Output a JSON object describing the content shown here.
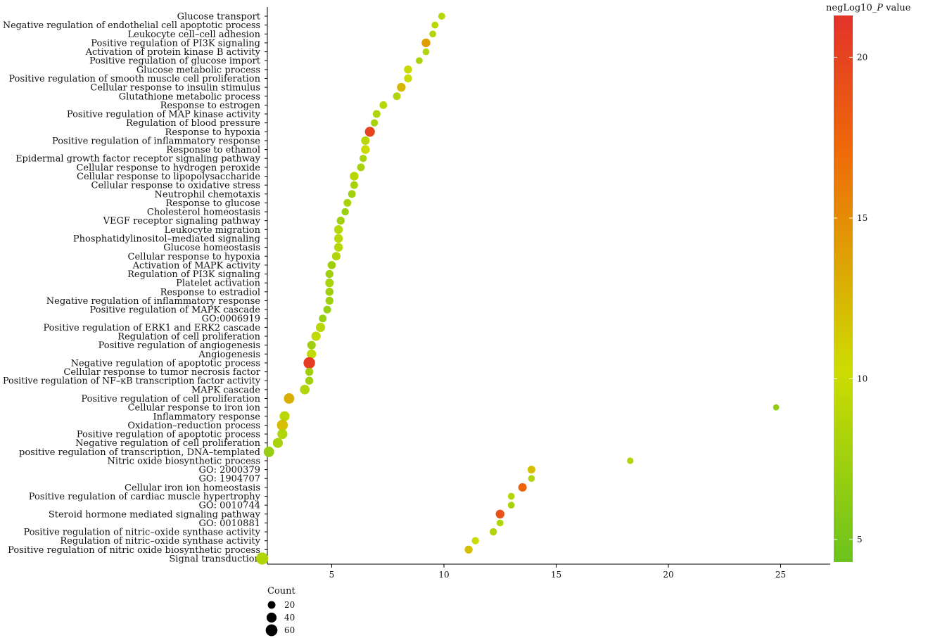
{
  "chart_data": {
    "type": "scatter",
    "title": "",
    "xlabel": "",
    "ylabel": "",
    "xlim": [
      1.9,
      26
    ],
    "xticks": [
      5,
      10,
      15,
      20,
      25
    ],
    "grid": false,
    "color_legend": {
      "title_prefix": "negLog10_",
      "title_italic": "P",
      "title_suffix": " value",
      "range": [
        4.3,
        21.3
      ],
      "ticks": [
        5,
        10,
        15,
        20
      ],
      "colors": [
        "#6cc31d",
        "#cddc00",
        "#ef6a08",
        "#e2332a"
      ]
    },
    "size_legend": {
      "title": "Count",
      "range": [
        0,
        70
      ],
      "values": [
        20,
        40,
        60
      ]
    },
    "points": [
      {
        "term": "Glucose transport",
        "x": 9.9,
        "count": 15,
        "p": 9.0
      },
      {
        "term": "Negative regulation of endothelial cell apoptotic process",
        "x": 9.6,
        "count": 15,
        "p": 9.0
      },
      {
        "term": "Leukocyte cell–cell adhesion",
        "x": 9.5,
        "count": 14,
        "p": 8.5
      },
      {
        "term": "Positive regulation of PI3K signaling",
        "x": 9.2,
        "count": 28,
        "p": 14.0
      },
      {
        "term": "Activation of protein kinase B activity",
        "x": 9.2,
        "count": 14,
        "p": 8.5
      },
      {
        "term": "Positive regulation of glucose import",
        "x": 8.9,
        "count": 14,
        "p": 8.0
      },
      {
        "term": "Glucose metabolic process",
        "x": 8.4,
        "count": 23,
        "p": 10.0
      },
      {
        "term": "Positive regulation of smooth muscle cell proliferation",
        "x": 8.4,
        "count": 22,
        "p": 10.0
      },
      {
        "term": "Cellular response to insulin stimulus",
        "x": 8.1,
        "count": 28,
        "p": 12.5
      },
      {
        "term": "Glutathione metabolic process",
        "x": 7.9,
        "count": 20,
        "p": 8.5
      },
      {
        "term": "Response to estrogen",
        "x": 7.3,
        "count": 20,
        "p": 9.0
      },
      {
        "term": "Positive regulation of MAP kinase activity",
        "x": 7.0,
        "count": 20,
        "p": 8.5
      },
      {
        "term": "Regulation of blood pressure",
        "x": 6.9,
        "count": 17,
        "p": 8.0
      },
      {
        "term": "Response to hypoxia",
        "x": 6.7,
        "count": 40,
        "p": 20.0
      },
      {
        "term": "Positive regulation of inflammatory response",
        "x": 6.5,
        "count": 26,
        "p": 9.0
      },
      {
        "term": "Response to ethanol",
        "x": 6.5,
        "count": 28,
        "p": 10.0
      },
      {
        "term": "Epidermal growth factor receptor signaling pathway",
        "x": 6.4,
        "count": 17,
        "p": 8.0
      },
      {
        "term": "Cellular response to hydrogen peroxide",
        "x": 6.3,
        "count": 20,
        "p": 8.0
      },
      {
        "term": "Cellular response to lipopolysaccharide",
        "x": 6.0,
        "count": 28,
        "p": 9.0
      },
      {
        "term": "Cellular response to oxidative stress",
        "x": 6.0,
        "count": 20,
        "p": 8.0
      },
      {
        "term": "Neutrophil chemotaxis",
        "x": 5.9,
        "count": 20,
        "p": 7.5
      },
      {
        "term": "Response to glucose",
        "x": 5.7,
        "count": 20,
        "p": 8.0
      },
      {
        "term": "Cholesterol homeostasis",
        "x": 5.6,
        "count": 17,
        "p": 7.0
      },
      {
        "term": "VEGF receptor signaling pathway",
        "x": 5.4,
        "count": 22,
        "p": 7.5
      },
      {
        "term": "Leukocyte migration",
        "x": 5.3,
        "count": 28,
        "p": 9.0
      },
      {
        "term": "Phosphatidylinositol–mediated signaling",
        "x": 5.3,
        "count": 28,
        "p": 9.0
      },
      {
        "term": "Glucose homeostasis",
        "x": 5.3,
        "count": 28,
        "p": 9.0
      },
      {
        "term": "Cellular response to hypoxia",
        "x": 5.2,
        "count": 26,
        "p": 8.5
      },
      {
        "term": "Activation of MAPK activity",
        "x": 5.0,
        "count": 23,
        "p": 7.5
      },
      {
        "term": "Regulation of PI3K signaling",
        "x": 4.9,
        "count": 22,
        "p": 7.5
      },
      {
        "term": "Platelet activation",
        "x": 4.9,
        "count": 26,
        "p": 8.0
      },
      {
        "term": "Response to estradiol",
        "x": 4.9,
        "count": 23,
        "p": 7.5
      },
      {
        "term": "Negative regulation of inflammatory response",
        "x": 4.9,
        "count": 22,
        "p": 7.5
      },
      {
        "term": "Positive regulation of MAPK cascade",
        "x": 4.8,
        "count": 20,
        "p": 7.0
      },
      {
        "term": "GO:0006919",
        "x": 4.6,
        "count": 20,
        "p": 7.0
      },
      {
        "term": "Positive regulation of ERK1 and ERK2 cascade",
        "x": 4.5,
        "count": 33,
        "p": 9.0
      },
      {
        "term": "Regulation of cell proliferation",
        "x": 4.3,
        "count": 33,
        "p": 9.5
      },
      {
        "term": "Positive regulation of angiogenesis",
        "x": 4.1,
        "count": 26,
        "p": 7.5
      },
      {
        "term": "Angiogenesis",
        "x": 4.1,
        "count": 33,
        "p": 9.5
      },
      {
        "term": "Negative regulation of apoptotic process",
        "x": 4.0,
        "count": 58,
        "p": 20.5
      },
      {
        "term": "Cellular response to tumor necrosis factor",
        "x": 4.0,
        "count": 22,
        "p": 7.5
      },
      {
        "term": "Positive regulation of NF–κB transcription factor activity",
        "x": 4.0,
        "count": 22,
        "p": 7.5
      },
      {
        "term": "MAPK cascade",
        "x": 3.8,
        "count": 36,
        "p": 8.5
      },
      {
        "term": "Positive regulation of cell proliferation",
        "x": 3.1,
        "count": 45,
        "p": 13.0
      },
      {
        "term": "Cellular response to iron ion",
        "x": 24.8,
        "count": 10,
        "p": 6.5
      },
      {
        "term": "Inflammatory response",
        "x": 2.9,
        "count": 40,
        "p": 9.0
      },
      {
        "term": "Oxidation–reduction process",
        "x": 2.8,
        "count": 50,
        "p": 12.0
      },
      {
        "term": "Positive regulation of apoptotic process",
        "x": 2.8,
        "count": 40,
        "p": 8.5
      },
      {
        "term": "Negative regulation of cell proliferation",
        "x": 2.6,
        "count": 40,
        "p": 8.0
      },
      {
        "term": "positive regulation of transcription, DNA–templated",
        "x": 2.2,
        "count": 45,
        "p": 7.0
      },
      {
        "term": "Nitric oxide biosynthetic process",
        "x": 18.3,
        "count": 12,
        "p": 8.5
      },
      {
        "term": "GO: 2000379",
        "x": 13.9,
        "count": 20,
        "p": 12.0
      },
      {
        "term": "GO: 1904707",
        "x": 13.9,
        "count": 14,
        "p": 8.5
      },
      {
        "term": "Cellular iron ion homeostasis",
        "x": 13.5,
        "count": 26,
        "p": 17.5
      },
      {
        "term": "Positive regulation of cardiac muscle hypertrophy",
        "x": 13.0,
        "count": 14,
        "p": 8.5
      },
      {
        "term": "GO: 0010744",
        "x": 13.0,
        "count": 14,
        "p": 8.0
      },
      {
        "term": "Steroid hormone mediated signaling pathway",
        "x": 12.5,
        "count": 28,
        "p": 19.0
      },
      {
        "term": "GO: 0010881",
        "x": 12.5,
        "count": 14,
        "p": 8.5
      },
      {
        "term": "Positive regulation of nitric–oxide synthase activity",
        "x": 12.2,
        "count": 17,
        "p": 8.5
      },
      {
        "term": "Regulation of nitric–oxide synthase activity",
        "x": 11.4,
        "count": 17,
        "p": 10.0
      },
      {
        "term": "Positive regulation of nitric oxide biosynthetic process",
        "x": 11.1,
        "count": 22,
        "p": 12.0
      },
      {
        "term": "Signal transduction",
        "x": 1.9,
        "count": 65,
        "p": 8.5
      }
    ]
  }
}
